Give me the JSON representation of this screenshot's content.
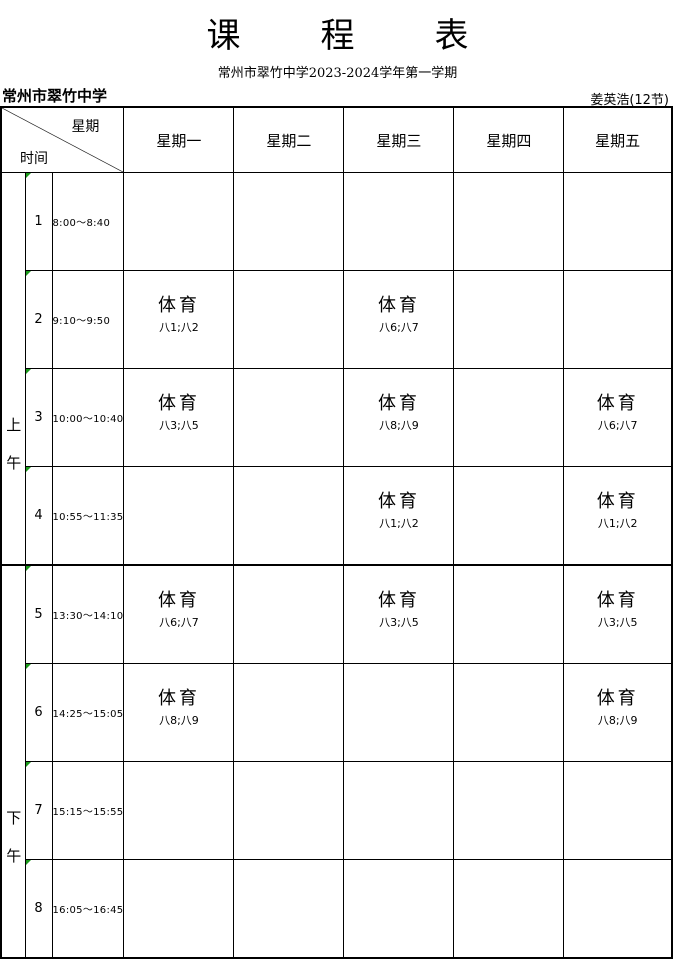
{
  "title": [
    "课",
    "程",
    "表"
  ],
  "subtitle": "常州市翠竹中学2023-2024学年第一学期",
  "school": "常州市翠竹中学",
  "teacher": "姜英浩(12节)",
  "header": {
    "diag_top": "星期",
    "diag_bottom": "时间",
    "days": [
      "星期一",
      "星期二",
      "星期三",
      "星期四",
      "星期五"
    ]
  },
  "halves": {
    "am": "上午",
    "pm": "下午"
  },
  "periods": [
    {
      "n": "1",
      "time": "8:00～8:40",
      "cells": [
        null,
        null,
        null,
        null,
        null
      ]
    },
    {
      "n": "2",
      "time": "9:10～9:50",
      "cells": [
        {
          "course": "体育",
          "classes": "八1;八2"
        },
        null,
        {
          "course": "体育",
          "classes": "八6;八7"
        },
        null,
        null
      ]
    },
    {
      "n": "3",
      "time": "10:00～10:40",
      "cells": [
        {
          "course": "体育",
          "classes": "八3;八5"
        },
        null,
        {
          "course": "体育",
          "classes": "八8;八9"
        },
        null,
        {
          "course": "体育",
          "classes": "八6;八7"
        }
      ]
    },
    {
      "n": "4",
      "time": "10:55～11:35",
      "cells": [
        null,
        null,
        {
          "course": "体育",
          "classes": "八1;八2"
        },
        null,
        {
          "course": "体育",
          "classes": "八1;八2"
        }
      ]
    },
    {
      "n": "5",
      "time": "13:30～14:10",
      "cells": [
        {
          "course": "体育",
          "classes": "八6;八7"
        },
        null,
        {
          "course": "体育",
          "classes": "八3;八5"
        },
        null,
        {
          "course": "体育",
          "classes": "八3;八5"
        }
      ]
    },
    {
      "n": "6",
      "time": "14:25～15:05",
      "cells": [
        {
          "course": "体育",
          "classes": "八8;八9"
        },
        null,
        null,
        null,
        {
          "course": "体育",
          "classes": "八8;八9"
        }
      ]
    },
    {
      "n": "7",
      "time": "15:15～15:55",
      "cells": [
        null,
        null,
        null,
        null,
        null
      ]
    },
    {
      "n": "8",
      "time": "16:05～16:45",
      "cells": [
        null,
        null,
        null,
        null,
        null
      ]
    }
  ]
}
